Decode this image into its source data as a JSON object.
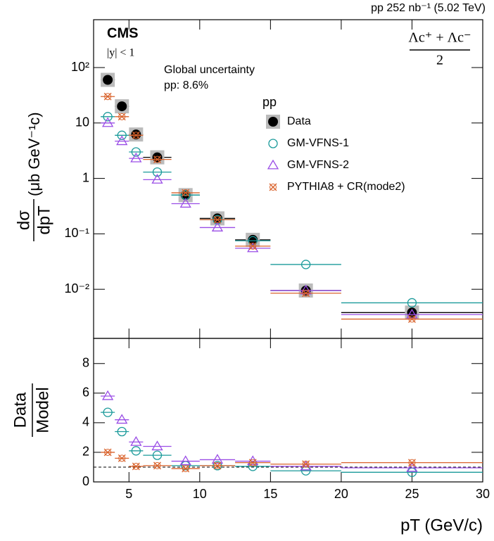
{
  "chart_data": [
    {
      "type": "scatter",
      "header": "pp 252 nb⁻¹ (5.02 TeV)",
      "experiment": "CMS",
      "rapidity": "|y| < 1",
      "particle": "Λc⁺ + Λc⁻",
      "particle_denominator": "2",
      "annotation": [
        "Global uncertainty",
        "pp: 8.6%"
      ],
      "legend_title": "pp",
      "y_label_numerator": "dσ",
      "y_label_denominator": "dpT",
      "y_label_unit": "(μb GeV⁻¹c)",
      "log_y": true,
      "xlim": [
        2.5,
        30
      ],
      "xticks": [
        5,
        10,
        15,
        20,
        25,
        30
      ],
      "ylim": [
        0.0013,
        730
      ],
      "yticks": [
        {
          "value": 0.01,
          "label": "10⁻²"
        },
        {
          "value": 0.1,
          "label": "10⁻¹"
        },
        1,
        10,
        {
          "value": 100,
          "label": "10²"
        }
      ],
      "x": [
        3.5,
        4.5,
        5.5,
        7,
        9,
        11.25,
        13.75,
        17.5,
        25
      ],
      "bins": [
        3,
        4,
        5,
        6,
        8,
        10,
        12.5,
        15,
        20,
        30
      ],
      "series": [
        {
          "name": "Data",
          "color": "#000000",
          "marker": "filled-circle",
          "values": [
            60,
            20,
            6.2,
            2.4,
            0.5,
            0.19,
            0.078,
            0.0095,
            0.0038
          ]
        },
        {
          "name": "GM-VFNS-1",
          "color": "#1a9a9a",
          "marker": "open-circle",
          "values": [
            13,
            6,
            3,
            1.3,
            0.5,
            0.18,
            0.075,
            0.028,
            0.0057
          ]
        },
        {
          "name": "GM-VFNS-2",
          "color": "#9a4de6",
          "marker": "open-triangle",
          "values": [
            10,
            4.7,
            2.3,
            0.95,
            0.35,
            0.13,
            0.055,
            0.0095,
            0.0035
          ]
        },
        {
          "name": "PYTHIA8 + CR(mode2)",
          "color": "#d9622b",
          "marker": "cross-circle",
          "values": [
            30,
            13,
            6,
            2.2,
            0.55,
            0.18,
            0.06,
            0.0085,
            0.0029
          ]
        }
      ]
    },
    {
      "type": "scatter",
      "y_label_numerator": "Data",
      "y_label_denominator": "Model",
      "x_label": "pT (GeV/c)",
      "xlim": [
        2.5,
        30
      ],
      "xticks": [
        5,
        10,
        15,
        20,
        25,
        30
      ],
      "ylim": [
        0,
        9.7
      ],
      "yticks": [
        0,
        2,
        4,
        6,
        8
      ],
      "reference_line": 1,
      "x": [
        3.5,
        4.5,
        5.5,
        7,
        9,
        11.25,
        13.75,
        17.5,
        25
      ],
      "bins": [
        3,
        4,
        5,
        6,
        8,
        10,
        12.5,
        15,
        20,
        30
      ],
      "series": [
        {
          "color": "#1a9a9a",
          "marker": "open-circle",
          "values": [
            4.7,
            3.4,
            2.1,
            1.8,
            1.1,
            1.1,
            1.05,
            0.75,
            0.65
          ]
        },
        {
          "color": "#9a4de6",
          "marker": "open-triangle",
          "values": [
            5.8,
            4.2,
            2.7,
            2.4,
            1.4,
            1.5,
            1.4,
            1.05,
            0.95
          ]
        },
        {
          "color": "#d9622b",
          "marker": "cross-circle",
          "values": [
            2.0,
            1.6,
            1.05,
            1.1,
            0.9,
            1.1,
            1.3,
            1.2,
            1.3
          ]
        }
      ]
    }
  ]
}
